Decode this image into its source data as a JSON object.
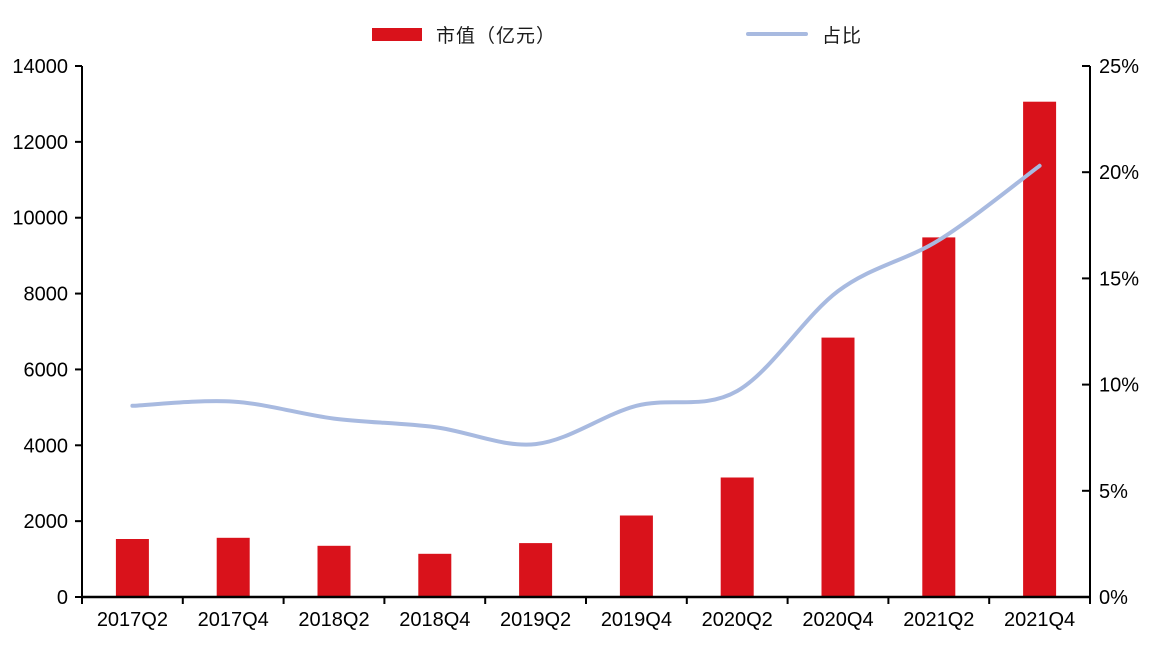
{
  "chart_data": {
    "type": "bar",
    "subtype": "bar+line dual axis",
    "title": "",
    "grid": false,
    "legend_position": "top",
    "categories": [
      "2017Q2",
      "2017Q4",
      "2018Q2",
      "2018Q4",
      "2019Q2",
      "2019Q4",
      "2020Q2",
      "2020Q4",
      "2021Q2",
      "2021Q4"
    ],
    "series": [
      {
        "name": "市值（亿元）",
        "type": "bar",
        "axis": "left",
        "color": "#D9121B",
        "values": [
          1530,
          1560,
          1350,
          1140,
          1420,
          2150,
          3150,
          6840,
          9480,
          13060
        ]
      },
      {
        "name": "占比",
        "type": "line",
        "axis": "right",
        "color": "#A8BAE0",
        "values": [
          9.0,
          9.2,
          8.4,
          8.0,
          7.2,
          9.0,
          9.7,
          14.4,
          16.8,
          20.3
        ],
        "unit": "%"
      }
    ],
    "left_axis": {
      "min": 0,
      "max": 14000,
      "step": 2000,
      "tick_labels": [
        "0",
        "2000",
        "4000",
        "6000",
        "8000",
        "10000",
        "12000",
        "14000"
      ]
    },
    "right_axis": {
      "min": 0,
      "max": 25,
      "step": 5,
      "tick_labels": [
        "0%",
        "5%",
        "10%",
        "15%",
        "20%",
        "25%"
      ]
    }
  },
  "legend": {
    "marketcap_label": "市值（亿元）",
    "ratio_label": "占比"
  },
  "colors": {
    "bar": "#D9121B",
    "line": "#A8BAE0",
    "axis": "#000000",
    "background": "#FFFFFF"
  }
}
